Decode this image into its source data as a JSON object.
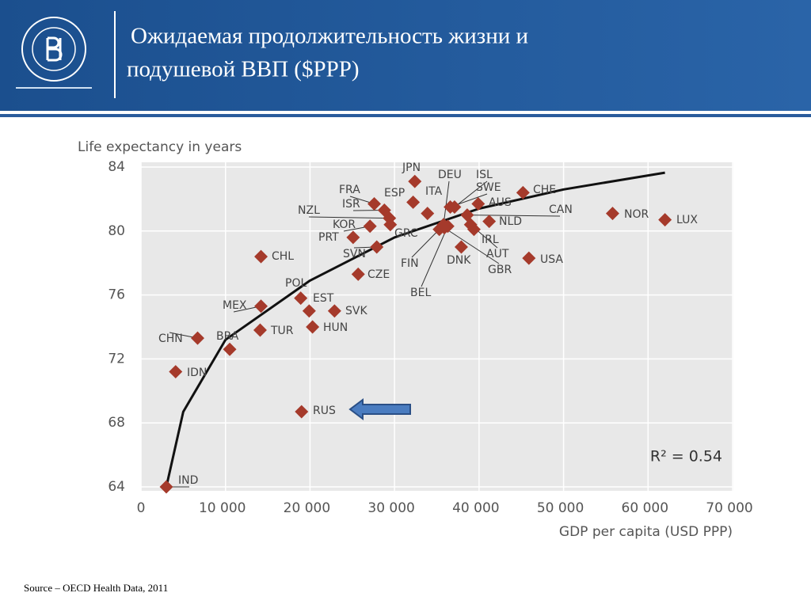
{
  "chart_data": {
    "type": "scatter",
    "title": [
      "Ожидаемая продолжительность жизни и",
      "подушевой ВВП ($PPP)"
    ],
    "y_label": "Life expectancy in years",
    "x_label": "GDP per capita (USD PPP)",
    "annotation": "R² = 0.54",
    "source": "Source – OECD Health Data, 2011",
    "color": "#a53a2b",
    "trend_color": "#111111",
    "point_labels": [
      "JPN",
      "ESP",
      "ITA",
      "DEU",
      "ISL",
      "SWE",
      "AUS",
      "CHE",
      "CAN",
      "NOR",
      "LUX",
      "FRA",
      "ISR",
      "NZL",
      "KOR",
      "GRC",
      "PRT",
      "SVN",
      "NLD",
      "IRL",
      "AUT",
      "DNK",
      "GBR",
      "USA",
      "FIN",
      "BEL",
      "CZE",
      "CHL",
      "POL",
      "EST",
      "SVK",
      "MEX",
      "TUR",
      "HUN",
      "BRA",
      "CHN",
      "IDN",
      "RUS",
      "IND"
    ],
    "x": [
      32400,
      32200,
      33900,
      35800,
      37100,
      36600,
      39900,
      45200,
      38600,
      55800,
      62000,
      27600,
      28800,
      29400,
      27100,
      29500,
      25100,
      27900,
      41200,
      39400,
      39000,
      37900,
      35900,
      45900,
      35300,
      36300,
      25700,
      14200,
      18900,
      19900,
      22900,
      14200,
      14100,
      20300,
      10500,
      6700,
      4100,
      19000,
      3000
    ],
    "values": [
      83.1,
      81.8,
      81.1,
      80.4,
      81.5,
      81.5,
      81.7,
      82.4,
      81.0,
      81.1,
      80.7,
      81.7,
      81.3,
      80.8,
      80.3,
      80.4,
      79.6,
      79.0,
      80.6,
      80.1,
      80.4,
      79.0,
      80.2,
      78.3,
      80.1,
      80.3,
      77.3,
      78.4,
      75.8,
      75.0,
      75.0,
      75.3,
      73.8,
      74.0,
      72.6,
      73.3,
      71.2,
      68.7,
      64.0
    ],
    "trendline": {
      "x": [
        3000,
        5000,
        10000,
        20000,
        30000,
        40000,
        50000,
        62000
      ],
      "y": [
        64.0,
        68.7,
        73.2,
        76.9,
        79.6,
        81.4,
        82.6,
        83.65
      ]
    },
    "xlim": [
      0,
      70000
    ],
    "xticks": [
      0,
      {
        "value": 10000,
        "label": "10 000"
      },
      {
        "value": 20000,
        "label": "20 000"
      },
      {
        "value": 30000,
        "label": "30 000"
      },
      {
        "value": 40000,
        "label": "40 000"
      },
      {
        "value": 50000,
        "label": "50 000"
      },
      {
        "value": 60000,
        "label": "60 000"
      },
      {
        "value": 70000,
        "label": "70 000"
      }
    ],
    "ylim": [
      64,
      84
    ],
    "yticks": [
      64,
      68,
      72,
      76,
      80,
      84
    ],
    "grid": true
  }
}
